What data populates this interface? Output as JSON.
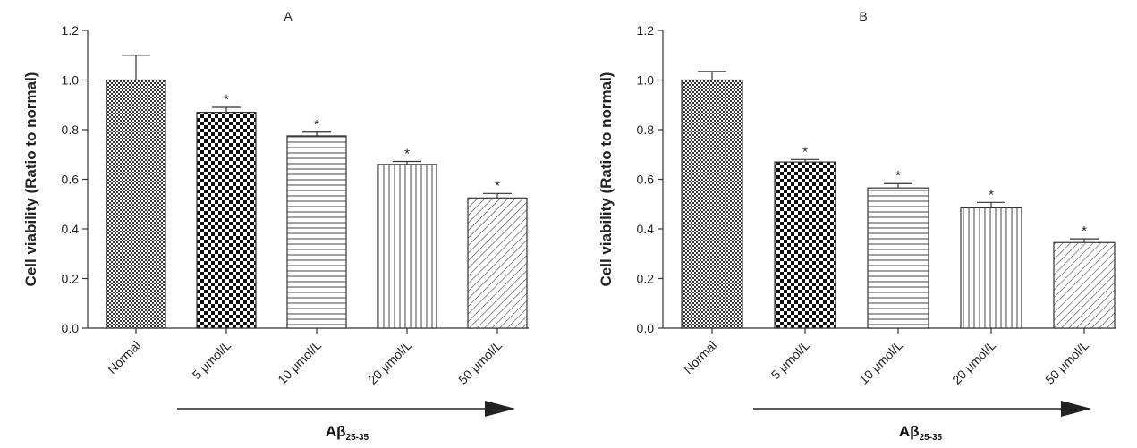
{
  "chart_data": [
    {
      "type": "bar",
      "title": "A",
      "ylabel": "Cell viability (Ratio to normal)",
      "xlabel_main": "Aβ",
      "xlabel_sub": "25-35",
      "ylim": [
        0,
        1.2
      ],
      "yticks": [
        "0.0",
        "0.2",
        "0.4",
        "0.6",
        "0.8",
        "1.0",
        "1.2"
      ],
      "categories": [
        "Normal",
        "5 μmol/L",
        "10 μmol/L",
        "20 μmol/L",
        "50 μmol/L"
      ],
      "values": [
        1.0,
        0.87,
        0.775,
        0.66,
        0.525
      ],
      "errors": [
        0.1,
        0.02,
        0.015,
        0.012,
        0.018
      ],
      "annotations": [
        "",
        "*",
        "*",
        "*",
        "*"
      ],
      "patterns": [
        "checker-fine",
        "checker-coarse",
        "hlines",
        "vlines",
        "diag"
      ]
    },
    {
      "type": "bar",
      "title": "B",
      "ylabel": "Cell viability (Ratio to normal)",
      "xlabel_main": "Aβ",
      "xlabel_sub": "25-35",
      "ylim": [
        0,
        1.2
      ],
      "yticks": [
        "0.0",
        "0.2",
        "0.4",
        "0.6",
        "0.8",
        "1.0",
        "1.2"
      ],
      "categories": [
        "Normal",
        "5 μmol/L",
        "10 μmol/L",
        "20 μmol/L",
        "50 μmol/L"
      ],
      "values": [
        1.0,
        0.67,
        0.565,
        0.485,
        0.345
      ],
      "errors": [
        0.035,
        0.01,
        0.018,
        0.022,
        0.015
      ],
      "annotations": [
        "",
        "*",
        "*",
        "*",
        "*"
      ],
      "patterns": [
        "checker-fine",
        "checker-coarse",
        "hlines",
        "vlines",
        "diag"
      ]
    }
  ]
}
